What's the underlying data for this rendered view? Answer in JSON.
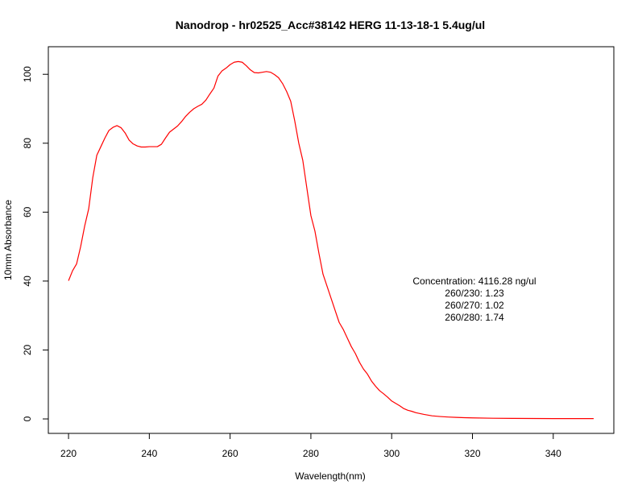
{
  "chart_data": {
    "type": "line",
    "title": "Nanodrop - hr02525_Acc#38142  HERG 11-13-18-1 5.4ug/ul",
    "xlabel": "Wavelength(nm)",
    "ylabel": "10mm Absorbance",
    "xlim": [
      215,
      355
    ],
    "ylim": [
      -4.2,
      108
    ],
    "x_ticks": [
      220,
      240,
      260,
      280,
      300,
      320,
      340
    ],
    "y_ticks": [
      0,
      20,
      40,
      60,
      80,
      100
    ],
    "grid": false,
    "legend": "none",
    "series": [
      {
        "color": "#ff0000",
        "x": [
          220,
          221,
          222,
          223,
          224,
          225,
          226,
          227,
          228,
          229,
          230,
          231,
          232,
          233,
          234,
          235,
          236,
          237,
          238,
          239,
          240,
          241,
          242,
          243,
          244,
          245,
          246,
          247,
          248,
          249,
          250,
          251,
          252,
          253,
          254,
          255,
          256,
          257,
          258,
          259,
          260,
          261,
          262,
          263,
          264,
          265,
          266,
          267,
          268,
          269,
          270,
          271,
          272,
          273,
          274,
          275,
          276,
          277,
          278,
          279,
          280,
          281,
          282,
          283,
          284,
          285,
          286,
          287,
          288,
          289,
          290,
          291,
          292,
          293,
          294,
          295,
          296,
          297,
          298,
          299,
          300,
          301,
          302,
          303,
          304,
          305,
          306,
          308,
          310,
          312,
          314,
          316,
          318,
          320,
          325,
          330,
          335,
          340,
          345,
          350
        ],
        "y": [
          40.1,
          43.0,
          45.0,
          50.0,
          56.0,
          61.0,
          70.0,
          76.5,
          79.0,
          81.5,
          83.7,
          84.6,
          85.1,
          84.5,
          83.0,
          80.9,
          79.8,
          79.2,
          78.9,
          78.9,
          79.0,
          79.0,
          79.0,
          79.7,
          81.5,
          83.2,
          84.1,
          85.0,
          86.3,
          87.8,
          89.0,
          90.0,
          90.7,
          91.3,
          92.5,
          94.3,
          96.0,
          99.5,
          101.0,
          101.8,
          102.8,
          103.5,
          103.7,
          103.5,
          102.5,
          101.3,
          100.5,
          100.4,
          100.6,
          100.8,
          100.6,
          99.9,
          99.0,
          97.3,
          95.0,
          92.2,
          86.5,
          80.0,
          75.0,
          67.0,
          59.0,
          54.5,
          48.0,
          42.0,
          38.5,
          35.0,
          31.5,
          28.0,
          26.0,
          23.5,
          21.0,
          19.0,
          16.5,
          14.5,
          13.0,
          11.0,
          9.5,
          8.2,
          7.3,
          6.3,
          5.2,
          4.5,
          3.8,
          3.0,
          2.5,
          2.2,
          1.8,
          1.3,
          0.9,
          0.7,
          0.55,
          0.45,
          0.35,
          0.3,
          0.2,
          0.15,
          0.12,
          0.1,
          0.1,
          0.1
        ]
      }
    ],
    "annotations": [
      "Concentration: 4116.28 ng/ul",
      "260/230: 1.23",
      "260/270: 1.02",
      "260/280: 1.74"
    ]
  }
}
